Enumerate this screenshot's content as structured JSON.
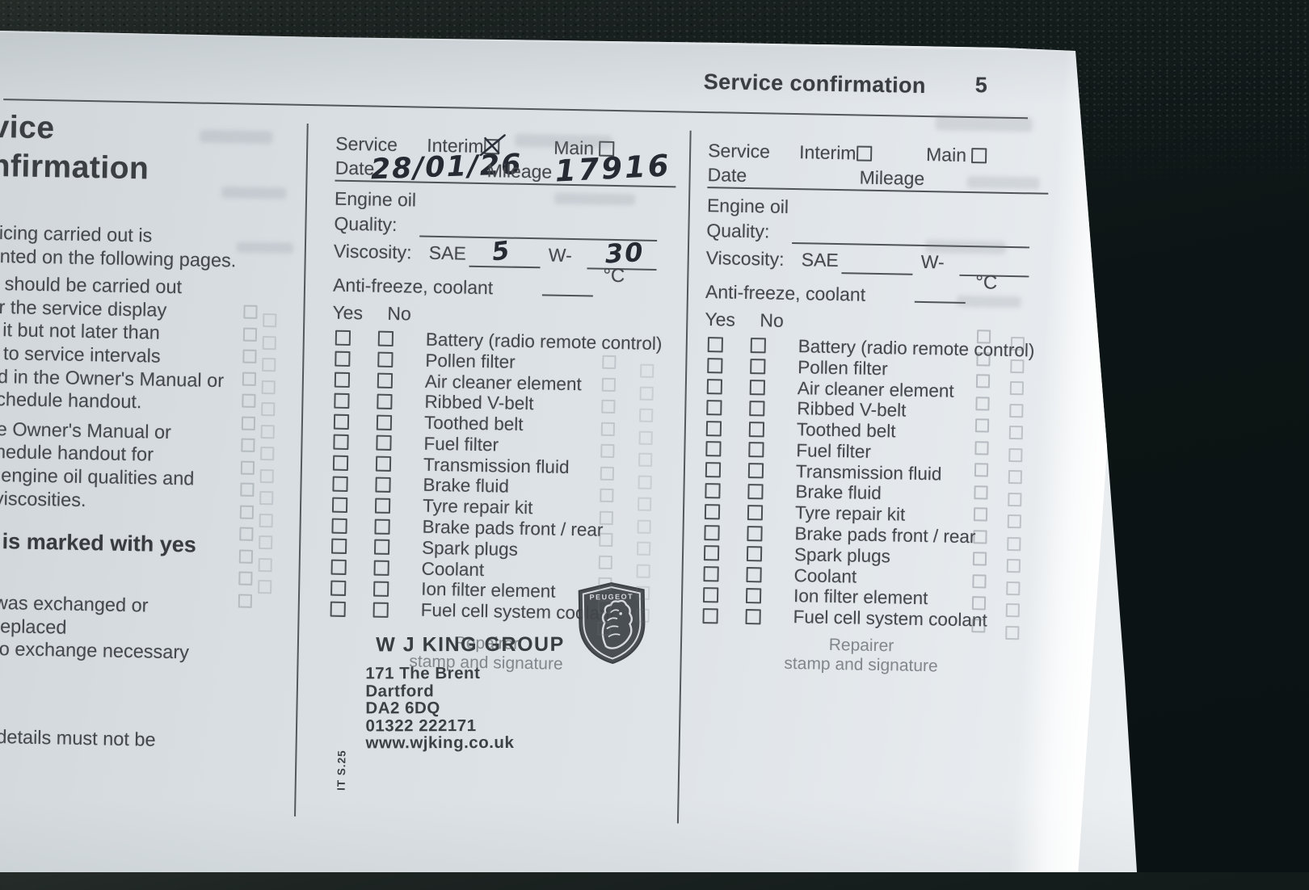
{
  "colors": {
    "paper": "#dfe4e8",
    "ink": "#45494d",
    "handwriting": "#252a33",
    "background": "#0c1415"
  },
  "header": {
    "title": "Service confirmation",
    "page_number": "5"
  },
  "left_column": {
    "title_lines": [
      "vice",
      "nfirmation"
    ],
    "para1": [
      "vicing carried out is",
      "ented on the following pages."
    ],
    "para2": [
      "e should be carried out",
      "er the service display",
      "s it but not later than",
      "g to service intervals",
      "ed in the Owner's Manual or",
      "schedule handout."
    ],
    "para3": [
      "ee Owner's Manual or",
      "chedule handout for",
      "d engine oil qualities and",
      "l viscosities."
    ],
    "bold_note": "k is marked with yes",
    "legend_lines": [
      "was exchanged or",
      "replaced",
      "no exchange necessary"
    ],
    "footer_line": "d details must not be"
  },
  "form": {
    "service_label": "Service",
    "interim_label": "Interim",
    "main_label": "Main",
    "date_label": "Date",
    "mileage_label": "Mileage",
    "engine_oil_label": "Engine oil",
    "quality_label": "Quality:",
    "viscosity_label": "Viscosity:",
    "sae_label": "SAE",
    "w_label": "W-",
    "antifreeze_label": "Anti-freeze, coolant",
    "celsius_label": "°C",
    "yes_label": "Yes",
    "no_label": "No",
    "checklist_items": [
      "Battery (radio remote control)",
      "Pollen filter",
      "Air cleaner element",
      "Ribbed V-belt",
      "Toothed belt",
      "Fuel filter",
      "Transmission fluid",
      "Brake fluid",
      "Tyre repair kit",
      "Brake pads front / rear",
      "Spark plugs",
      "Coolant",
      "Ion filter element",
      "Fuel cell system coolant"
    ],
    "repairer_caption": [
      "Repairer",
      "stamp and signature"
    ]
  },
  "entry_left": {
    "interim_checked": true,
    "date_value": "28/01/26",
    "mileage_value": "17916",
    "sae_value": "5",
    "w_value": "30"
  },
  "stamp": {
    "name": "W J KING GROUP",
    "lines": [
      "171 The Brent",
      "Dartford",
      "DA2 6DQ",
      "01322 222171",
      "www.wjking.co.uk"
    ],
    "side_code": "IT S.25"
  },
  "logo": {
    "brand": "PEUGEOT"
  }
}
